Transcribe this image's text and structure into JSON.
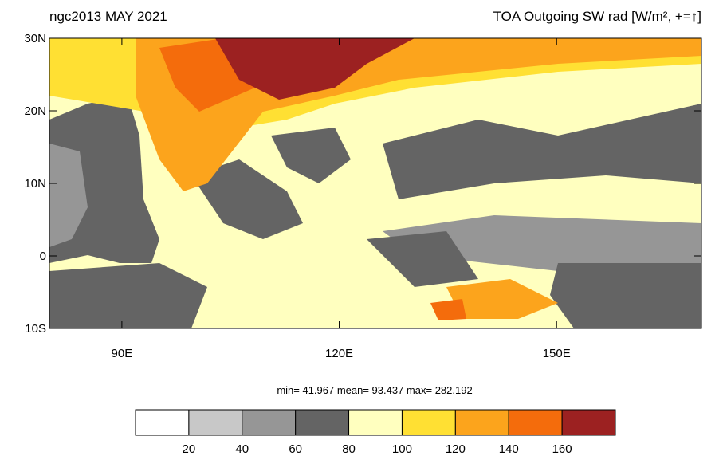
{
  "chart_data": {
    "type": "map",
    "title_left": "ngc2013 MAY 2021",
    "title_right": "TOA Outgoing SW rad [W/m², +=↑]",
    "stats": "min=  41.967  mean=  93.437  max= 282.192",
    "xlim": [
      80,
      170
    ],
    "ylim": [
      -10,
      30
    ],
    "xticks": [
      {
        "value": 90,
        "label": "90E"
      },
      {
        "value": 120,
        "label": "120E"
      },
      {
        "value": 150,
        "label": "150E"
      }
    ],
    "yticks": [
      {
        "value": 30,
        "label": "30N"
      },
      {
        "value": 20,
        "label": "20N"
      },
      {
        "value": 10,
        "label": "10N"
      },
      {
        "value": 0,
        "label": "0"
      },
      {
        "value": -10,
        "label": "10S"
      }
    ],
    "colorbar": {
      "levels": [
        20,
        40,
        60,
        80,
        100,
        120,
        140,
        160
      ],
      "colors": [
        "#ffffff",
        "#c8c8c8",
        "#969696",
        "#646464",
        "#ffffbf",
        "#ffe033",
        "#fca41c",
        "#f46c0c",
        "#9c2121"
      ]
    }
  }
}
